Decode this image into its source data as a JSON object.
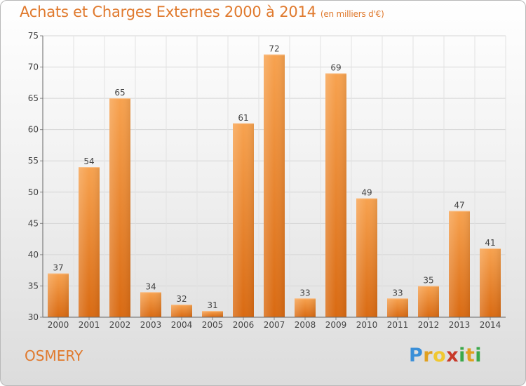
{
  "header": {
    "title": "Achats et Charges Externes 2000 à 2014",
    "unit": "(en milliers d'€)"
  },
  "footer": {
    "commune": "OSMERY",
    "brand": [
      "P",
      "r",
      "o",
      "x",
      "i",
      "t",
      "i"
    ]
  },
  "colors": {
    "accent": "#e07a2e",
    "bar_top": "#f7a24f",
    "bar_bottom": "#d96a12"
  },
  "chart_data": {
    "type": "bar",
    "categories": [
      "2000",
      "2001",
      "2002",
      "2003",
      "2004",
      "2005",
      "2006",
      "2007",
      "2008",
      "2009",
      "2010",
      "2011",
      "2012",
      "2013",
      "2014"
    ],
    "values": [
      37,
      54,
      65,
      34,
      32,
      31,
      61,
      72,
      33,
      69,
      49,
      33,
      35,
      47,
      41
    ],
    "ylim": [
      30,
      75
    ],
    "yticks": [
      30,
      35,
      40,
      45,
      50,
      55,
      60,
      65,
      70,
      75
    ],
    "grid": true
  }
}
